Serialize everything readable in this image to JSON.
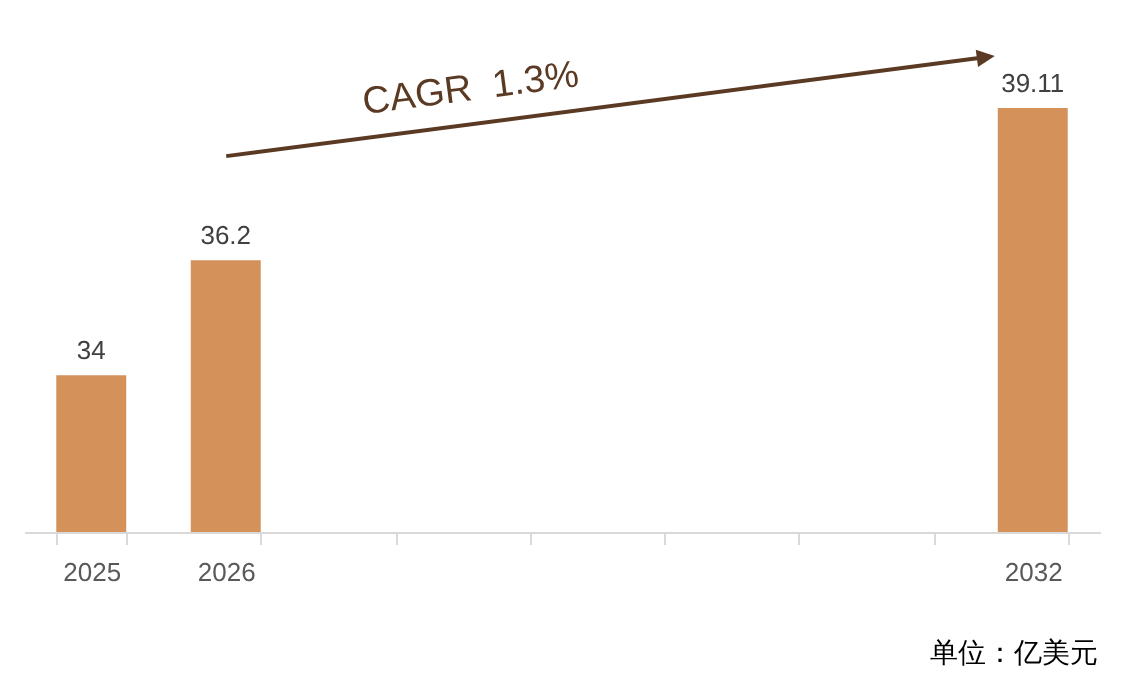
{
  "chart_data": {
    "type": "bar",
    "categories": [
      "2025",
      "2026",
      null,
      null,
      null,
      null,
      null,
      "2032"
    ],
    "values": [
      34,
      36.2,
      null,
      null,
      null,
      null,
      null,
      39.11
    ],
    "color": "#d4915a",
    "ylim": [
      31,
      39.11
    ],
    "data_labels": true,
    "tick_labels": "x",
    "annotations": [
      "CAGR  1.3%",
      "单位：亿美元"
    ]
  }
}
